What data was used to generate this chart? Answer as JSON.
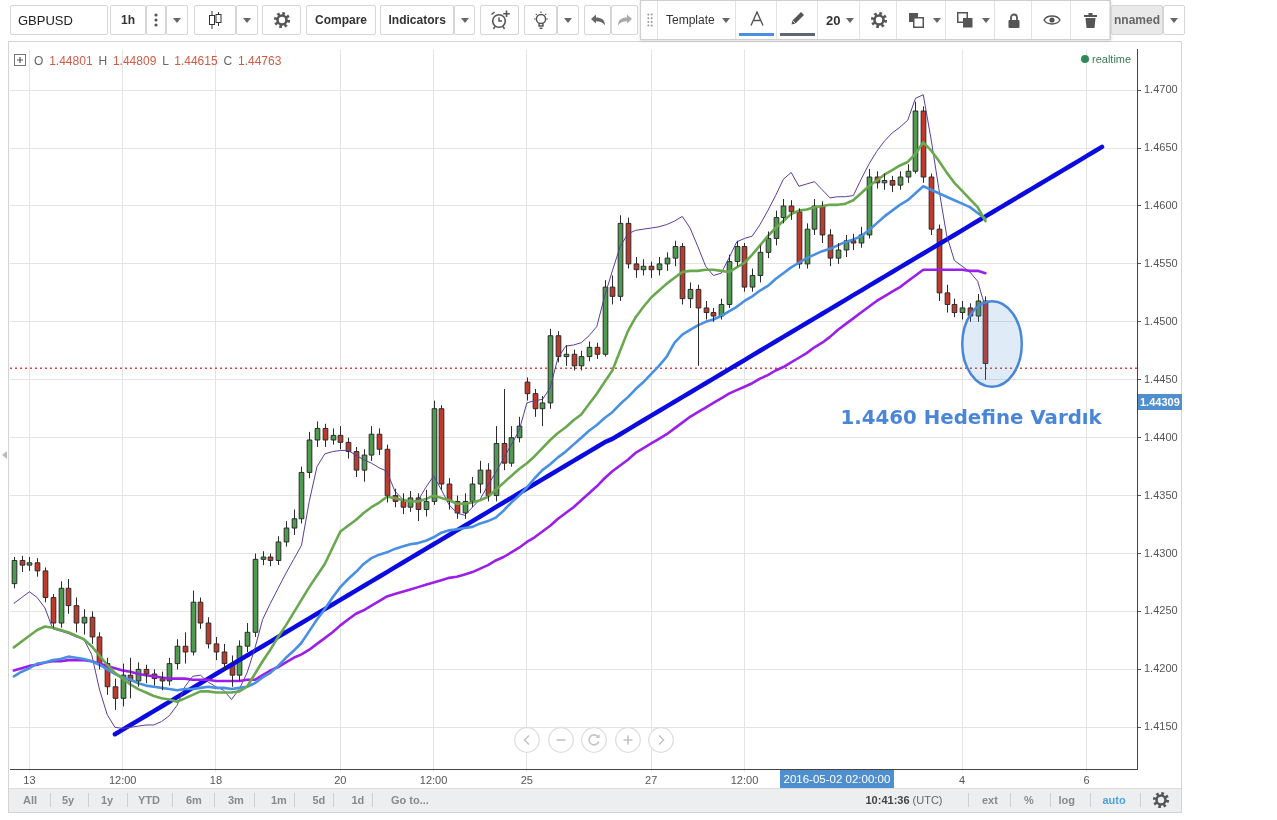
{
  "chart_data": {
    "type": "candlestick",
    "title": "GBPUSD",
    "categories": [
      null,
      null,
      "13",
      null,
      null,
      null,
      null,
      null,
      null,
      null,
      null,
      null,
      null,
      null,
      "12:00",
      null,
      null,
      null,
      null,
      null,
      null,
      null,
      null,
      null,
      null,
      null,
      "18",
      null,
      null,
      null,
      null,
      null,
      null,
      null,
      null,
      null,
      null,
      null,
      null,
      null,
      null,
      null,
      "20",
      null,
      null,
      null,
      null,
      null,
      null,
      null,
      null,
      null,
      null,
      null,
      "12:00",
      null,
      null,
      null,
      null,
      null,
      null,
      null,
      null,
      null,
      null,
      null,
      "25",
      null,
      null,
      null,
      null,
      null,
      null,
      null,
      null,
      null,
      null,
      null,
      null,
      null,
      null,
      null,
      "27",
      null,
      null,
      null,
      null,
      null,
      null,
      null,
      null,
      null,
      null,
      null,
      "12:00",
      null,
      null,
      null,
      null,
      null,
      null,
      null,
      null,
      null,
      null,
      null,
      null,
      null,
      null,
      null,
      null,
      null,
      null,
      null,
      null,
      null,
      null,
      null,
      null,
      null,
      null,
      null,
      "4",
      null,
      null,
      null,
      null,
      null,
      null,
      null,
      null,
      null,
      null,
      null,
      null,
      null,
      null,
      null,
      "6",
      null,
      null,
      null,
      null,
      null,
      null
    ],
    "ohlc": [
      [
        1.4274,
        1.4297,
        1.427,
        1.4294
      ],
      [
        1.4294,
        1.4298,
        1.4284,
        1.429
      ],
      [
        1.429,
        1.4297,
        1.4285,
        1.4292
      ],
      [
        1.4292,
        1.4296,
        1.428,
        1.4285
      ],
      [
        1.4285,
        1.4288,
        1.4258,
        1.4262
      ],
      [
        1.4262,
        1.4265,
        1.4236,
        1.424
      ],
      [
        1.424,
        1.4276,
        1.4236,
        1.427
      ],
      [
        1.427,
        1.4278,
        1.4248,
        1.4255
      ],
      [
        1.4255,
        1.4262,
        1.4232,
        1.424
      ],
      [
        1.424,
        1.4252,
        1.423,
        1.4245
      ],
      [
        1.4245,
        1.425,
        1.4222,
        1.4228
      ],
      [
        1.4228,
        1.4232,
        1.42,
        1.4205
      ],
      [
        1.4205,
        1.421,
        1.4178,
        1.4185
      ],
      [
        1.4185,
        1.4192,
        1.4165,
        1.4175
      ],
      [
        1.4175,
        1.4205,
        1.4168,
        1.4195
      ],
      [
        1.4195,
        1.421,
        1.4175,
        1.419
      ],
      [
        1.419,
        1.4206,
        1.4185,
        1.42
      ],
      [
        1.42,
        1.4204,
        1.4188,
        1.4196
      ],
      [
        1.4196,
        1.42,
        1.4186,
        1.4192
      ],
      [
        1.4192,
        1.4198,
        1.4182,
        1.419
      ],
      [
        1.419,
        1.421,
        1.4186,
        1.4205
      ],
      [
        1.4205,
        1.4226,
        1.42,
        1.422
      ],
      [
        1.422,
        1.4232,
        1.4205,
        1.4215
      ],
      [
        1.4215,
        1.4268,
        1.4212,
        1.4258
      ],
      [
        1.4258,
        1.4262,
        1.4235,
        1.424
      ],
      [
        1.424,
        1.4245,
        1.4218,
        1.4222
      ],
      [
        1.4222,
        1.4228,
        1.4208,
        1.4215
      ],
      [
        1.4215,
        1.4222,
        1.42,
        1.4205
      ],
      [
        1.4205,
        1.4212,
        1.4185,
        1.4195
      ],
      [
        1.4195,
        1.4225,
        1.419,
        1.422
      ],
      [
        1.422,
        1.424,
        1.4215,
        1.4232
      ],
      [
        1.4232,
        1.43,
        1.4228,
        1.4295
      ],
      [
        1.4295,
        1.4302,
        1.429,
        1.4297
      ],
      [
        1.4297,
        1.43,
        1.4289,
        1.4294
      ],
      [
        1.4294,
        1.4315,
        1.429,
        1.431
      ],
      [
        1.431,
        1.4328,
        1.4306,
        1.4322
      ],
      [
        1.4322,
        1.4338,
        1.4316,
        1.433
      ],
      [
        1.433,
        1.4375,
        1.4326,
        1.437
      ],
      [
        1.437,
        1.4405,
        1.4365,
        1.4398
      ],
      [
        1.4398,
        1.4414,
        1.4392,
        1.4408
      ],
      [
        1.4408,
        1.4412,
        1.4392,
        1.4398
      ],
      [
        1.4398,
        1.4408,
        1.4394,
        1.4402
      ],
      [
        1.4402,
        1.441,
        1.439,
        1.4396
      ],
      [
        1.4396,
        1.44,
        1.4382,
        1.4388
      ],
      [
        1.4388,
        1.4392,
        1.4366,
        1.4372
      ],
      [
        1.4372,
        1.439,
        1.4362,
        1.4385
      ],
      [
        1.4385,
        1.441,
        1.438,
        1.4403
      ],
      [
        1.4403,
        1.4408,
        1.4385,
        1.439
      ],
      [
        1.439,
        1.4394,
        1.4344,
        1.435
      ],
      [
        1.435,
        1.4356,
        1.434,
        1.4345
      ],
      [
        1.4345,
        1.4352,
        1.4334,
        1.434
      ],
      [
        1.434,
        1.4354,
        1.4336,
        1.4348
      ],
      [
        1.4348,
        1.4352,
        1.4328,
        1.4338
      ],
      [
        1.4338,
        1.4355,
        1.4332,
        1.4345
      ],
      [
        1.4345,
        1.4432,
        1.4342,
        1.4425
      ],
      [
        1.4425,
        1.4428,
        1.4355,
        1.436
      ],
      [
        1.436,
        1.4365,
        1.4338,
        1.4345
      ],
      [
        1.4345,
        1.435,
        1.433,
        1.4335
      ],
      [
        1.4335,
        1.4352,
        1.433,
        1.4345
      ],
      [
        1.4345,
        1.4366,
        1.434,
        1.436
      ],
      [
        1.436,
        1.438,
        1.4352,
        1.4372
      ],
      [
        1.4372,
        1.4378,
        1.4345,
        1.435
      ],
      [
        1.435,
        1.441,
        1.4345,
        1.4395
      ],
      [
        1.4395,
        1.4442,
        1.4372,
        1.4378
      ],
      [
        1.4378,
        1.441,
        1.4375,
        1.44
      ],
      [
        1.44,
        1.4418,
        1.4396,
        1.441
      ],
      [
        1.4448,
        1.4452,
        1.4432,
        1.4438
      ],
      [
        1.4438,
        1.4442,
        1.4418,
        1.4425
      ],
      [
        1.4425,
        1.4436,
        1.441,
        1.443
      ],
      [
        1.443,
        1.4494,
        1.4425,
        1.4488
      ],
      [
        1.4488,
        1.4492,
        1.4465,
        1.447
      ],
      [
        1.447,
        1.448,
        1.4462,
        1.4472
      ],
      [
        1.4472,
        1.4476,
        1.4458,
        1.4462
      ],
      [
        1.4462,
        1.4475,
        1.4458,
        1.447
      ],
      [
        1.447,
        1.4483,
        1.4466,
        1.4478
      ],
      [
        1.4478,
        1.4482,
        1.4468,
        1.4472
      ],
      [
        1.4472,
        1.4536,
        1.447,
        1.453
      ],
      [
        1.453,
        1.454,
        1.4515,
        1.4522
      ],
      [
        1.4522,
        1.4592,
        1.4518,
        1.4585
      ],
      [
        1.4585,
        1.459,
        1.4546,
        1.455
      ],
      [
        1.455,
        1.4556,
        1.4538,
        1.4545
      ],
      [
        1.4545,
        1.4554,
        1.454,
        1.4548
      ],
      [
        1.4548,
        1.4552,
        1.4538,
        1.4545
      ],
      [
        1.4545,
        1.4556,
        1.454,
        1.455
      ],
      [
        1.455,
        1.456,
        1.4544,
        1.4555
      ],
      [
        1.4555,
        1.457,
        1.4548,
        1.4565
      ],
      [
        1.4565,
        1.4568,
        1.4515,
        1.452
      ],
      [
        1.452,
        1.4534,
        1.4512,
        1.4528
      ],
      [
        1.4528,
        1.4532,
        1.4462,
        1.4512
      ],
      [
        1.4512,
        1.4518,
        1.4502,
        1.4508
      ],
      [
        1.4508,
        1.4512,
        1.45,
        1.4505
      ],
      [
        1.4505,
        1.452,
        1.4502,
        1.4515
      ],
      [
        1.4515,
        1.4558,
        1.4512,
        1.4552
      ],
      [
        1.4552,
        1.457,
        1.4548,
        1.4565
      ],
      [
        1.4565,
        1.4568,
        1.4526,
        1.453
      ],
      [
        1.453,
        1.4546,
        1.4526,
        1.454
      ],
      [
        1.454,
        1.4566,
        1.4534,
        1.456
      ],
      [
        1.456,
        1.4578,
        1.4555,
        1.4572
      ],
      [
        1.4572,
        1.4596,
        1.4566,
        1.459
      ],
      [
        1.459,
        1.4606,
        1.4585,
        1.46
      ],
      [
        1.46,
        1.4605,
        1.4588,
        1.4595
      ],
      [
        1.4595,
        1.4598,
        1.4546,
        1.455
      ],
      [
        1.455,
        1.4585,
        1.4546,
        1.458
      ],
      [
        1.458,
        1.4606,
        1.4575,
        1.46
      ],
      [
        1.46,
        1.4604,
        1.4568,
        1.4575
      ],
      [
        1.4575,
        1.458,
        1.4548,
        1.4555
      ],
      [
        1.4555,
        1.4568,
        1.455,
        1.4562
      ],
      [
        1.4562,
        1.4575,
        1.4556,
        1.457
      ],
      [
        1.457,
        1.4576,
        1.4562,
        1.4568
      ],
      [
        1.4568,
        1.4582,
        1.4564,
        1.4575
      ],
      [
        1.4575,
        1.4632,
        1.4572,
        1.4625
      ],
      [
        1.4625,
        1.463,
        1.4615,
        1.462
      ],
      [
        1.462,
        1.4628,
        1.4614,
        1.4622
      ],
      [
        1.4622,
        1.4626,
        1.4612,
        1.4618
      ],
      [
        1.4618,
        1.463,
        1.4614,
        1.4625
      ],
      [
        1.4625,
        1.4636,
        1.462,
        1.463
      ],
      [
        1.463,
        1.469,
        1.4628,
        1.4682
      ],
      [
        1.4682,
        1.4686,
        1.462,
        1.4625
      ],
      [
        1.4625,
        1.4628,
        1.4575,
        1.458
      ],
      [
        1.458,
        1.4584,
        1.4518,
        1.4525
      ],
      [
        1.4525,
        1.4532,
        1.4508,
        1.4515
      ],
      [
        1.4515,
        1.452,
        1.4504,
        1.4508
      ],
      [
        1.4508,
        1.4518,
        1.4502,
        1.4512
      ],
      [
        1.4512,
        1.4516,
        1.45,
        1.4505
      ],
      [
        1.4505,
        1.4524,
        1.45,
        1.4518
      ],
      [
        1.4518,
        1.4522,
        1.445,
        1.4464
      ],
      null,
      null,
      null,
      null,
      null,
      null,
      null,
      null,
      null,
      null,
      null,
      null,
      null,
      null,
      null,
      null,
      null,
      null,
      null
    ],
    "colors": [
      "#4e9a4e",
      "#c0392b",
      "#4e9a4e",
      "#c0392b",
      "#c0392b",
      "#c0392b",
      "#4e9a4e",
      "#c0392b",
      "#c0392b",
      "#4e9a4e",
      "#c0392b",
      "#c0392b",
      "#c0392b",
      "#c0392b",
      "#4e9a4e",
      "#c0392b",
      "#4e9a4e",
      "#c0392b",
      "#c0392b",
      "#c0392b",
      "#4e9a4e",
      "#4e9a4e",
      "#c0392b",
      "#4e9a4e",
      "#c0392b",
      "#c0392b",
      "#c0392b",
      "#c0392b",
      "#c0392b",
      "#4e9a4e",
      "#4e9a4e",
      "#4e9a4e",
      "#4e9a4e",
      "#c0392b",
      "#4e9a4e",
      "#4e9a4e",
      "#4e9a4e",
      "#4e9a4e",
      "#4e9a4e",
      "#4e9a4e",
      "#c0392b",
      "#4e9a4e",
      "#c0392b",
      "#c0392b",
      "#c0392b",
      "#4e9a4e",
      "#4e9a4e",
      "#c0392b",
      "#c0392b",
      "#c0392b",
      "#c0392b",
      "#4e9a4e",
      "#c0392b",
      "#4e9a4e",
      "#4e9a4e",
      "#c0392b",
      "#c0392b",
      "#c0392b",
      "#4e9a4e",
      "#4e9a4e",
      "#4e9a4e",
      "#c0392b",
      "#4e9a4e",
      "#c0392b",
      "#4e9a4e",
      "#4e9a4e",
      "#c0392b",
      "#c0392b",
      "#4e9a4e",
      "#4e9a4e",
      "#c0392b",
      "#4e9a4e",
      "#c0392b",
      "#4e9a4e",
      "#4e9a4e",
      "#c0392b",
      "#4e9a4e",
      "#c0392b",
      "#4e9a4e",
      "#c0392b",
      "#c0392b",
      "#4e9a4e",
      "#c0392b",
      "#4e9a4e",
      "#4e9a4e",
      "#4e9a4e",
      "#c0392b",
      "#4e9a4e",
      "#c0392b",
      "#c0392b",
      "#c0392b",
      "#4e9a4e",
      "#4e9a4e",
      "#4e9a4e",
      "#c0392b",
      "#4e9a4e",
      "#4e9a4e",
      "#4e9a4e",
      "#4e9a4e",
      "#4e9a4e",
      "#c0392b",
      "#c0392b",
      "#4e9a4e",
      "#4e9a4e",
      "#c0392b",
      "#c0392b",
      "#4e9a4e",
      "#4e9a4e",
      "#c0392b",
      "#4e9a4e",
      "#4e9a4e",
      "#c0392b",
      "#4e9a4e",
      "#c0392b",
      "#4e9a4e",
      "#4e9a4e",
      "#4e9a4e",
      "#c0392b",
      "#c0392b",
      "#c0392b",
      "#c0392b",
      "#c0392b",
      "#4e9a4e",
      "#c0392b",
      "#4e9a4e",
      "#c0392b",
      null,
      null,
      null,
      null,
      null,
      null,
      null,
      null,
      null,
      null,
      null,
      null,
      null,
      null,
      null,
      null,
      null,
      null,
      null
    ],
    "series": [
      {
        "type": "line",
        "color": "#6aa84f",
        "values": [
          1.4219,
          1.4224,
          1.4229,
          1.4234,
          1.4237,
          1.4236,
          1.4234,
          1.4232,
          1.4229,
          1.4226,
          1.422,
          1.4212,
          1.4204,
          1.4197,
          1.4192,
          1.4187,
          1.4183,
          1.418,
          1.4177,
          1.4175,
          1.4174,
          1.4172,
          1.4175,
          1.4178,
          1.4181,
          1.4181,
          1.418,
          1.418,
          1.418,
          1.4181,
          1.4185,
          1.4196,
          1.4207,
          1.4217,
          1.4228,
          1.4238,
          1.4249,
          1.426,
          1.4271,
          1.4281,
          1.4291,
          1.4305,
          1.4319,
          1.4324,
          1.4329,
          1.4335,
          1.434,
          1.4344,
          1.4349,
          1.4348,
          1.4346,
          1.4345,
          1.4345,
          1.4347,
          1.435,
          1.4348,
          1.4346,
          1.4343,
          1.4343,
          1.4344,
          1.4346,
          1.4349,
          1.4355,
          1.4361,
          1.4367,
          1.4373,
          1.4378,
          1.4384,
          1.4391,
          1.4398,
          1.4404,
          1.4409,
          1.4415,
          1.442,
          1.4429,
          1.4438,
          1.4448,
          1.4458,
          1.4475,
          1.4492,
          1.4504,
          1.4513,
          1.4521,
          1.4527,
          1.4533,
          1.4538,
          1.4543,
          1.4544,
          1.4544,
          1.4545,
          1.4545,
          1.4544,
          1.4543,
          1.4547,
          1.4551,
          1.4558,
          1.4566,
          1.4574,
          1.4581,
          1.4587,
          1.4593,
          1.4596,
          1.4597,
          1.4599,
          1.46,
          1.4601,
          1.4601,
          1.4602,
          1.4605,
          1.4611,
          1.4617,
          1.4622,
          1.4627,
          1.4631,
          1.4635,
          1.4638,
          1.4645,
          1.4655,
          1.4648,
          1.4639,
          1.4629,
          1.462,
          1.4613,
          1.4606,
          1.4599,
          1.4587,
          null,
          null,
          null,
          null,
          null,
          null,
          null,
          null,
          null,
          null,
          null,
          null,
          null,
          null,
          null,
          null,
          null,
          null,
          null
        ]
      },
      {
        "type": "line",
        "color": "#4a90e2",
        "values": [
          1.4194,
          1.4198,
          1.4201,
          1.4205,
          1.4206,
          1.4208,
          1.4209,
          1.4211,
          1.421,
          1.4209,
          1.4207,
          1.4204,
          1.42,
          1.4196,
          1.4193,
          1.4191,
          1.4188,
          1.4186,
          1.4185,
          1.4184,
          1.4183,
          1.4182,
          1.4183,
          1.4183,
          1.4184,
          1.4185,
          1.4184,
          1.4184,
          1.4183,
          1.4184,
          1.4185,
          1.4188,
          1.4193,
          1.4197,
          1.4203,
          1.421,
          1.4216,
          1.4223,
          1.4233,
          1.4243,
          1.4252,
          1.4262,
          1.4271,
          1.4278,
          1.4284,
          1.4291,
          1.4296,
          1.4299,
          1.4301,
          1.4304,
          1.4306,
          1.4308,
          1.4309,
          1.4311,
          1.4314,
          1.4318,
          1.432,
          1.4321,
          1.4322,
          1.4323,
          1.4326,
          1.4328,
          1.4331,
          1.4337,
          1.4344,
          1.435,
          1.4357,
          1.4365,
          1.4372,
          1.4377,
          1.4383,
          1.4388,
          1.4394,
          1.44,
          1.4406,
          1.4411,
          1.4417,
          1.4422,
          1.4429,
          1.4435,
          1.4442,
          1.4448,
          1.4455,
          1.4462,
          1.447,
          1.4482,
          1.4489,
          1.4493,
          1.4497,
          1.45,
          1.4502,
          1.4505,
          1.4509,
          1.4513,
          1.4518,
          1.4522,
          1.4527,
          1.4531,
          1.4537,
          1.4542,
          1.4547,
          1.4551,
          1.4555,
          1.4558,
          1.4561,
          1.4563,
          1.4566,
          1.4569,
          1.4571,
          1.4574,
          1.4579,
          1.4585,
          1.4591,
          1.4596,
          1.4601,
          1.4605,
          1.4611,
          1.4617,
          1.4614,
          1.4611,
          1.4608,
          1.4605,
          1.4602,
          1.4599,
          1.4594,
          1.4589,
          null,
          null,
          null,
          null,
          null,
          null,
          null,
          null,
          null,
          null,
          null,
          null,
          null,
          null,
          null,
          null,
          null,
          null,
          null
        ]
      },
      {
        "type": "line",
        "color": "#9b1fe8",
        "values": [
          1.4199,
          1.4201,
          1.4203,
          1.4204,
          1.4206,
          1.4207,
          1.4207,
          1.4208,
          1.4208,
          1.4208,
          1.4207,
          1.4205,
          1.4203,
          1.4201,
          1.4199,
          1.4198,
          1.4196,
          1.4195,
          1.4194,
          1.4193,
          1.4192,
          1.4192,
          1.4192,
          1.4191,
          1.4191,
          1.4191,
          1.419,
          1.419,
          1.419,
          1.419,
          1.4191,
          1.4191,
          1.4195,
          1.4199,
          1.4202,
          1.4206,
          1.421,
          1.4213,
          1.4217,
          1.4222,
          1.4227,
          1.4232,
          1.4238,
          1.4243,
          1.4248,
          1.4251,
          1.4255,
          1.4259,
          1.4263,
          1.4265,
          1.4267,
          1.4269,
          1.4271,
          1.4273,
          1.4275,
          1.4277,
          1.4279,
          1.428,
          1.4282,
          1.4284,
          1.4287,
          1.429,
          1.4294,
          1.4297,
          1.4301,
          1.4305,
          1.431,
          1.4314,
          1.4319,
          1.4324,
          1.433,
          1.4335,
          1.434,
          1.4346,
          1.4352,
          1.4358,
          1.4365,
          1.4371,
          1.4376,
          1.4381,
          1.4387,
          1.4391,
          1.4395,
          1.4399,
          1.4403,
          1.4408,
          1.4413,
          1.4418,
          1.4422,
          1.4426,
          1.443,
          1.4434,
          1.4438,
          1.4441,
          1.4444,
          1.4447,
          1.4451,
          1.4454,
          1.4458,
          1.4461,
          1.4465,
          1.4469,
          1.4473,
          1.4478,
          1.4482,
          1.4487,
          1.4493,
          1.4498,
          1.4503,
          1.4508,
          1.4513,
          1.4518,
          1.4522,
          1.4526,
          1.453,
          1.4535,
          1.454,
          1.4545,
          1.4545,
          1.4545,
          1.4545,
          1.4545,
          1.4545,
          1.4544,
          1.4544,
          1.4542,
          null,
          null,
          null,
          null,
          null,
          null,
          null,
          null,
          null,
          null,
          null,
          null,
          null,
          null,
          null,
          null,
          null,
          null,
          null
        ]
      },
      {
        "type": "line",
        "color": "#5a3d9e",
        "values": [
          1.4257,
          1.4262,
          1.4267,
          1.4262,
          1.4253,
          1.4235,
          1.4233,
          1.4231,
          1.4228,
          1.4226,
          1.4213,
          1.4183,
          1.4161,
          1.415,
          1.4149,
          1.415,
          1.4151,
          1.4152,
          1.4152,
          1.4155,
          1.416,
          1.4169,
          1.4185,
          1.4194,
          1.4195,
          1.4189,
          1.4185,
          1.4182,
          1.4174,
          1.4183,
          1.4197,
          1.4218,
          1.4243,
          1.4257,
          1.427,
          1.4283,
          1.4295,
          1.4307,
          1.4345,
          1.4375,
          1.4386,
          1.4388,
          1.4389,
          1.4389,
          1.4385,
          1.4381,
          1.4378,
          1.4374,
          1.4371,
          1.4354,
          1.4347,
          1.4345,
          1.4346,
          1.4357,
          1.4367,
          1.4355,
          1.4342,
          1.4335,
          1.4333,
          1.434,
          1.4347,
          1.4359,
          1.437,
          1.4382,
          1.4394,
          1.4406,
          1.443,
          1.4432,
          1.4433,
          1.4443,
          1.4469,
          1.4479,
          1.448,
          1.4482,
          1.4488,
          1.4496,
          1.4522,
          1.4544,
          1.4565,
          1.4576,
          1.4579,
          1.458,
          1.4581,
          1.4582,
          1.4584,
          1.4587,
          1.4591,
          1.4581,
          1.4565,
          1.4548,
          1.454,
          1.4542,
          1.4555,
          1.4569,
          1.4572,
          1.4574,
          1.4584,
          1.4596,
          1.4609,
          1.4623,
          1.4629,
          1.4617,
          1.4619,
          1.4621,
          1.4614,
          1.4607,
          1.4608,
          1.4608,
          1.4609,
          1.4623,
          1.4636,
          1.4647,
          1.4656,
          1.4663,
          1.4668,
          1.4674,
          1.4693,
          1.4696,
          1.4658,
          1.4615,
          1.4575,
          1.4553,
          1.4548,
          1.4543,
          1.4535,
          1.4512,
          null,
          null,
          null,
          null,
          null,
          null,
          null,
          null,
          null,
          null,
          null,
          null,
          null,
          null,
          null,
          null,
          null,
          null,
          null
        ]
      },
      {
        "type": "line",
        "color": "#0b0be0",
        "values": [
          null,
          null,
          null,
          null,
          null,
          null,
          null,
          null,
          null,
          null,
          null,
          null,
          null,
          1.4144,
          1.4148,
          1.4152,
          1.4156,
          1.416,
          1.4164,
          1.4168,
          1.4172,
          1.4176,
          1.418,
          1.4184,
          1.4188,
          1.4192,
          1.4196,
          1.42,
          1.4204,
          1.4208,
          1.4212,
          1.4216,
          1.422,
          1.4224,
          1.4228,
          1.4232,
          1.4236,
          1.424,
          1.4244,
          1.4248,
          1.4252,
          1.4256,
          1.426,
          1.4264,
          1.4268,
          1.4272,
          1.4276,
          1.428,
          1.4284,
          1.4288,
          1.4292,
          1.4296,
          1.43,
          1.4304,
          1.4308,
          1.4312,
          1.4316,
          1.432,
          1.4324,
          1.4328,
          1.4332,
          1.4336,
          1.434,
          1.4344,
          1.4348,
          1.4352,
          1.4356,
          1.436,
          1.4364,
          1.4368,
          1.4372,
          1.4376,
          1.438,
          1.4384,
          1.4388,
          1.4392,
          1.4396,
          1.4399,
          1.4403,
          1.4407,
          1.4411,
          1.4415,
          1.4419,
          1.4423,
          1.4427,
          1.4431,
          1.4435,
          1.4439,
          1.4443,
          1.4447,
          1.4451,
          1.4455,
          1.4459,
          1.4463,
          1.4467,
          1.4471,
          1.4475,
          1.4479,
          1.4483,
          1.4487,
          1.4491,
          1.4495,
          1.4499,
          1.4503,
          1.4507,
          1.4511,
          1.4515,
          1.4519,
          1.4523,
          1.4527,
          1.4531,
          1.4535,
          1.4539,
          1.4543,
          1.4547,
          1.4551,
          1.4555,
          1.4559,
          1.4563,
          1.4567,
          1.4571,
          1.4575,
          1.4579,
          1.4583,
          1.4587,
          1.4591,
          1.4595,
          1.4599,
          1.4603,
          1.4607,
          1.4611,
          1.4615,
          1.4619,
          1.4623,
          1.4627,
          1.4631,
          1.4635,
          1.4639,
          1.4643,
          1.4647,
          1.4651,
          null,
          null,
          null,
          null
        ]
      }
    ],
    "ylim": [
      1.4114,
      1.4735
    ],
    "yticks": [
      {
        "value": 1.415,
        "label": "1.4150"
      },
      {
        "value": 1.42,
        "label": "1.4200"
      },
      {
        "value": 1.425,
        "label": "1.4250"
      },
      {
        "value": 1.43,
        "label": "1.4300"
      },
      {
        "value": 1.435,
        "label": "1.4350"
      },
      {
        "value": 1.44,
        "label": "1.4400"
      },
      {
        "value": 1.445,
        "label": "1.4450"
      },
      {
        "value": 1.45,
        "label": "1.4500"
      },
      {
        "value": 1.455,
        "label": "1.4550"
      },
      {
        "value": 1.46,
        "label": "1.4600"
      },
      {
        "value": 1.465,
        "label": "1.4650"
      },
      {
        "value": 1.47,
        "label": "1.4700"
      }
    ],
    "ref_lines": [
      {
        "axis": "y",
        "value": 1.446,
        "color": "#d9463b",
        "line_style": "dotted"
      }
    ],
    "annotations": [
      "O 1.44801 H 1.44809 L 1.44615 C 1.44763",
      "realtime",
      "1h",
      "Compare",
      "Indicators",
      "Template",
      "20",
      "nnamed",
      "All",
      "5y",
      "1y",
      "YTD",
      "6m",
      "3m",
      "1m",
      "5d",
      "1d",
      "Go to...",
      "10:41:36 (UTC)",
      "ext",
      "%",
      "log",
      "auto",
      "1.4460 Hedefine Vardık",
      "2016-05-02 02:00:00",
      {
        "text": "1.44309",
        "y": 1.44309
      }
    ],
    "grid": true,
    "legend": false,
    "marker": "none"
  }
}
